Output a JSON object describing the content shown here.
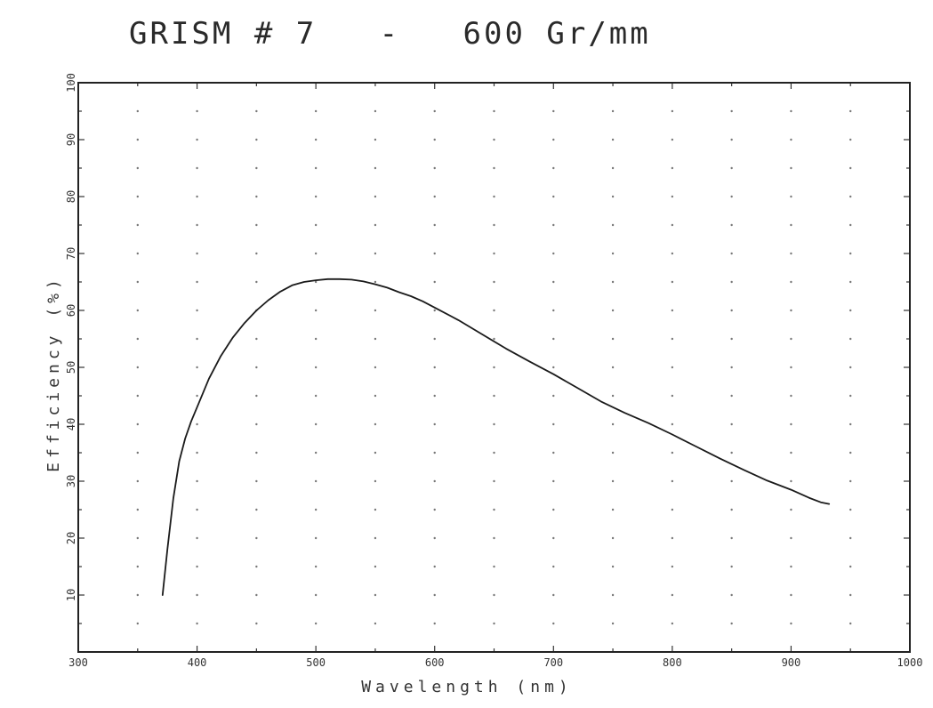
{
  "chart_data": {
    "type": "line",
    "title": "GRISM # 7   -   600 Gr/mm",
    "xlabel": "Wavelength (nm)",
    "ylabel": "Efficiency (%)",
    "xlim": [
      300,
      1000
    ],
    "ylim": [
      0,
      100
    ],
    "x_ticks": [
      "300",
      "400",
      "500",
      "600",
      "700",
      "800",
      "900",
      "1000"
    ],
    "y_ticks": [
      "10",
      "20",
      "30",
      "40",
      "50",
      "60",
      "70",
      "80",
      "90",
      "100"
    ],
    "grid": "dotted",
    "series": [
      {
        "x": [
          371,
          375,
          380,
          385,
          390,
          395,
          400,
          410,
          420,
          430,
          440,
          450,
          460,
          470,
          480,
          490,
          500,
          510,
          520,
          530,
          540,
          550,
          560,
          570,
          580,
          590,
          600,
          620,
          640,
          660,
          680,
          700,
          720,
          740,
          760,
          780,
          800,
          820,
          840,
          860,
          880,
          900,
          915,
          925,
          932
        ],
        "y": [
          10,
          18,
          27,
          33.5,
          37.5,
          40.5,
          43,
          48,
          52,
          55.2,
          57.8,
          60,
          61.8,
          63.3,
          64.4,
          65,
          65.3,
          65.5,
          65.5,
          65.4,
          65.1,
          64.6,
          64,
          63.2,
          62.5,
          61.6,
          60.5,
          58.3,
          55.8,
          53.3,
          51,
          48.8,
          46.4,
          44,
          42,
          40.2,
          38.2,
          36.1,
          34,
          32,
          30.1,
          28.5,
          27.1,
          26.3,
          26
        ]
      }
    ],
    "line_color": "#1a1a1a",
    "grid_color": "#777777"
  }
}
